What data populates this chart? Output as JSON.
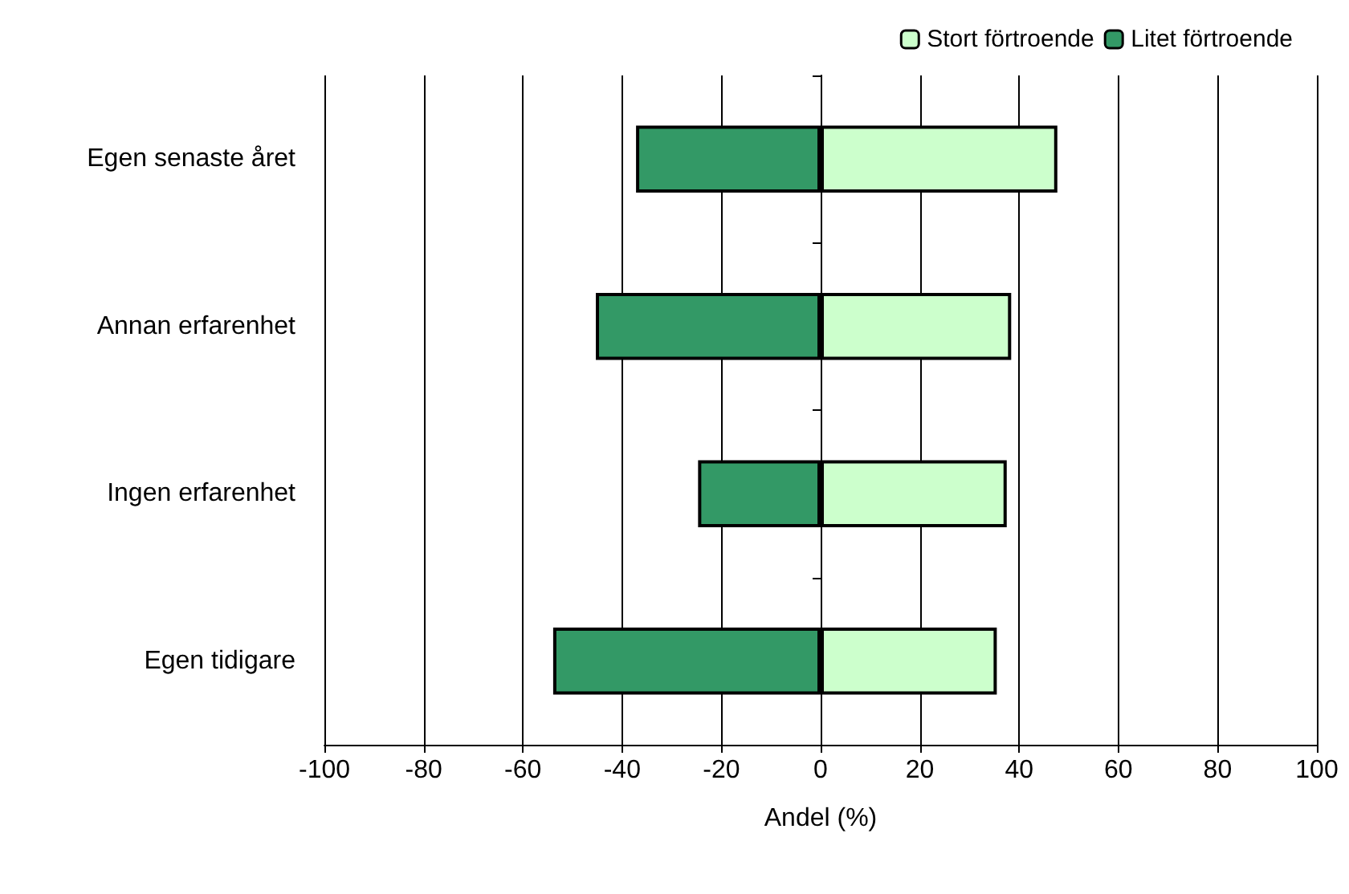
{
  "chart_data": {
    "type": "bar",
    "orientation": "horizontal",
    "stacked": true,
    "xlabel": "Andel (%)",
    "categories": [
      "Egen senaste året",
      "Annan erfarenhet",
      "Ingen erfarenhet",
      "Egen tidigare"
    ],
    "series": [
      {
        "name": "Stort förtroende",
        "color": "#ccffcc",
        "values": [
          47.7,
          38.4,
          37.5,
          35.5
        ]
      },
      {
        "name": "Litet förtroende",
        "color": "#339966",
        "values": [
          -37.2,
          -45.3,
          -24.7,
          -53.9
        ]
      }
    ],
    "xlim": [
      -100,
      100
    ],
    "xticks": [
      -100,
      -80,
      -60,
      -40,
      -20,
      0,
      20,
      40,
      60,
      80,
      100
    ],
    "grid": "x",
    "legend": "top right"
  }
}
